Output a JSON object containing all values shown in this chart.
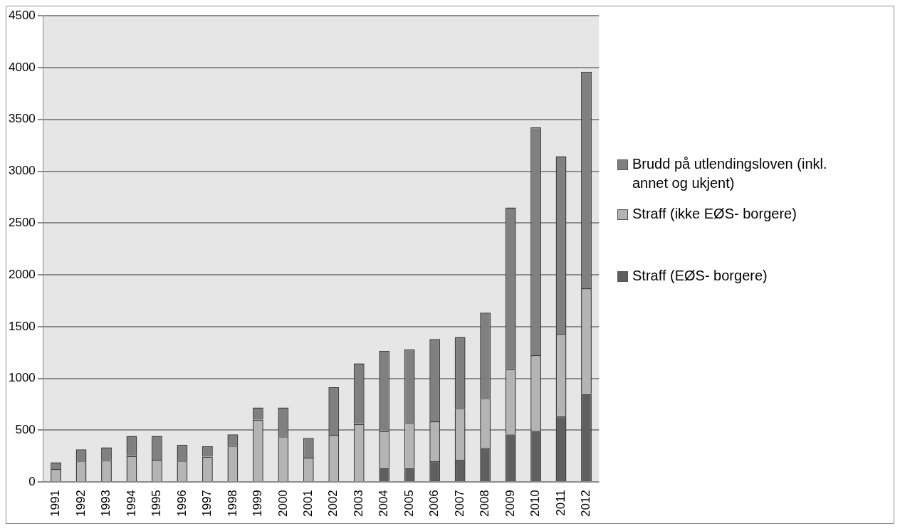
{
  "chart_data": {
    "type": "bar",
    "stacked": true,
    "categories": [
      "1991",
      "1992",
      "1993",
      "1994",
      "1995",
      "1996",
      "1997",
      "1998",
      "1999",
      "2000",
      "2001",
      "2002",
      "2003",
      "2004",
      "2005",
      "2006",
      "2007",
      "2008",
      "2009",
      "2010",
      "2011",
      "2012"
    ],
    "series": [
      {
        "name": "Straff (EØS- borgere)",
        "color": "#5f5f5f",
        "values": [
          0,
          0,
          0,
          0,
          0,
          0,
          0,
          0,
          0,
          0,
          0,
          0,
          0,
          135,
          135,
          200,
          215,
          330,
          460,
          495,
          635,
          850
        ]
      },
      {
        "name": "Straff (ikke EØS- borgere)",
        "color": "#b4b4b4",
        "values": [
          125,
          205,
          210,
          250,
          215,
          205,
          245,
          350,
          600,
          440,
          235,
          455,
          560,
          355,
          435,
          385,
          495,
          480,
          630,
          730,
          795,
          1020
        ]
      },
      {
        "name": "Brudd på utlendingsloven (inkl. annet og ukjent)",
        "color": "#808080",
        "values": [
          65,
          110,
          125,
          195,
          230,
          155,
          100,
          110,
          120,
          280,
          190,
          460,
          585,
          775,
          710,
          795,
          690,
          825,
          1560,
          2200,
          1715,
          2090
        ]
      }
    ],
    "ylim": [
      0,
      4500
    ],
    "yticks": [
      0,
      500,
      1000,
      1500,
      2000,
      2500,
      3000,
      3500,
      4000,
      4500
    ],
    "grid": "y",
    "legend": "right"
  }
}
